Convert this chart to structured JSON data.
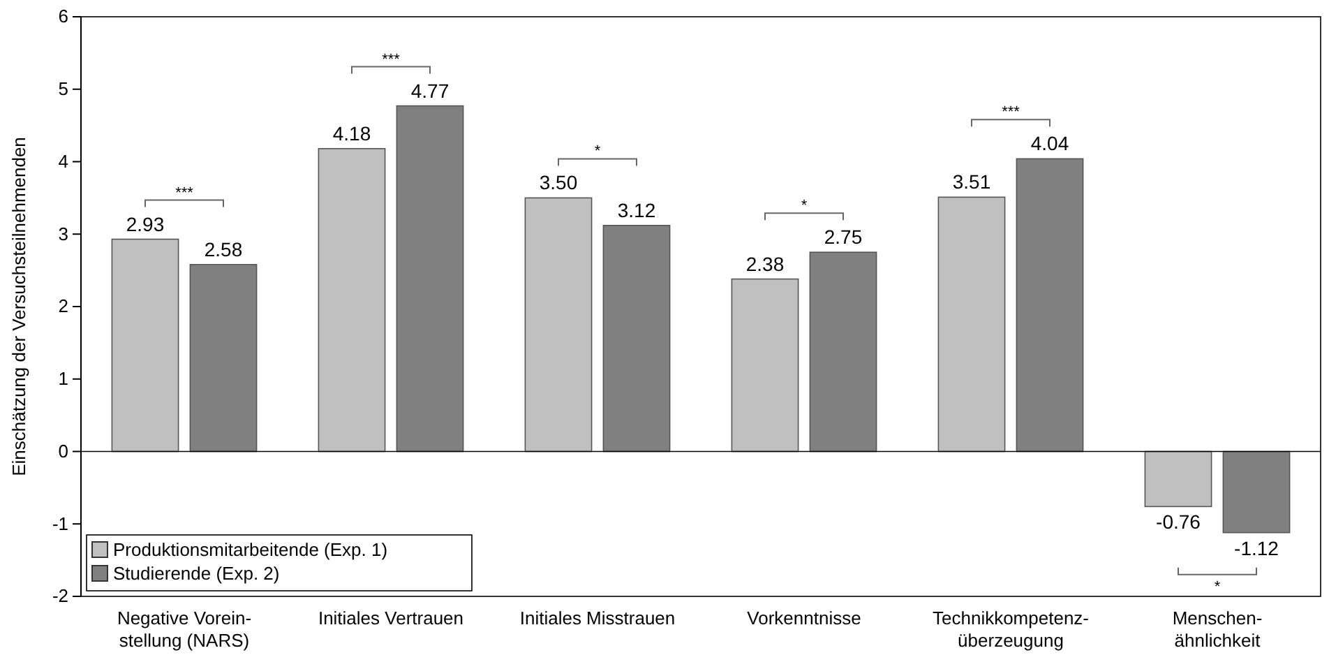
{
  "chart_data": {
    "type": "bar",
    "ylabel": "Einschätzung der Versuchsteilnehmenden",
    "categories": [
      "Negative Vorein-\nstellung (NARS)",
      "Initiales Vertrauen",
      "Initiales Misstrauen",
      "Vorkenntnisse",
      "Technikkompetenz-\nüberzeugung",
      "Menschen-\nähnlichkeit"
    ],
    "series": [
      {
        "name": "Produktionsmitarbeitende (Exp. 1)",
        "color": "#c0c0c0",
        "values": [
          2.93,
          4.18,
          3.5,
          2.38,
          3.51,
          -0.76
        ],
        "value_labels": [
          "2.93",
          "4.18",
          "3.50",
          "2.38",
          "3.51",
          "-0.76"
        ]
      },
      {
        "name": "Studierende (Exp. 2)",
        "color": "#808080",
        "values": [
          2.58,
          4.77,
          3.12,
          2.75,
          4.04,
          -1.12
        ],
        "value_labels": [
          "2.58",
          "4.77",
          "3.12",
          "2.75",
          "4.04",
          "-1.12"
        ]
      }
    ],
    "annotations": [
      "***",
      "***",
      "*",
      "*",
      "***",
      "*"
    ],
    "ylim": [
      -2,
      6
    ],
    "yticks": [
      -2,
      -1,
      0,
      1,
      2,
      3,
      4,
      5,
      6
    ],
    "legend": "bottom left"
  }
}
